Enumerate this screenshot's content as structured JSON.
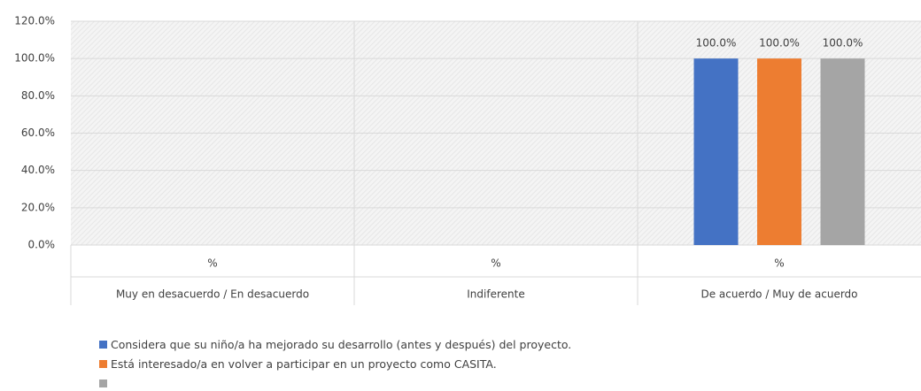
{
  "chart_data": {
    "type": "bar",
    "categories": [
      "Muy en desacuerdo / En desacuerdo",
      "Indiferente",
      "De acuerdo / Muy de acuerdo"
    ],
    "subcategories": [
      "%",
      "%",
      "%"
    ],
    "series": [
      {
        "name": "Considera que su niño/a ha mejorado su desarrollo (antes y después) del proyecto.",
        "color": "#4472c4",
        "values": [
          null,
          null,
          100
        ],
        "value_labels": [
          null,
          null,
          "100.0%"
        ]
      },
      {
        "name": "Está interesado/a en volver a participar en un proyecto como CASITA.",
        "color": "#ed7d31",
        "values": [
          null,
          null,
          100
        ],
        "value_labels": [
          null,
          null,
          "100.0%"
        ]
      },
      {
        "color": "#a5a5a5",
        "values": [
          null,
          null,
          100
        ],
        "value_labels": [
          null,
          null,
          "100.0%"
        ]
      }
    ],
    "ylim": [
      0,
      120
    ],
    "yticks": [
      {
        "value": 0,
        "label": "0.0%"
      },
      {
        "value": 20,
        "label": "20.0%"
      },
      {
        "value": 40,
        "label": "40.0%"
      },
      {
        "value": 60,
        "label": "60.0%"
      },
      {
        "value": 80,
        "label": "80.0%"
      },
      {
        "value": 100,
        "label": "100.0%"
      },
      {
        "value": 120,
        "label": "120.0%"
      }
    ],
    "grid": true
  }
}
